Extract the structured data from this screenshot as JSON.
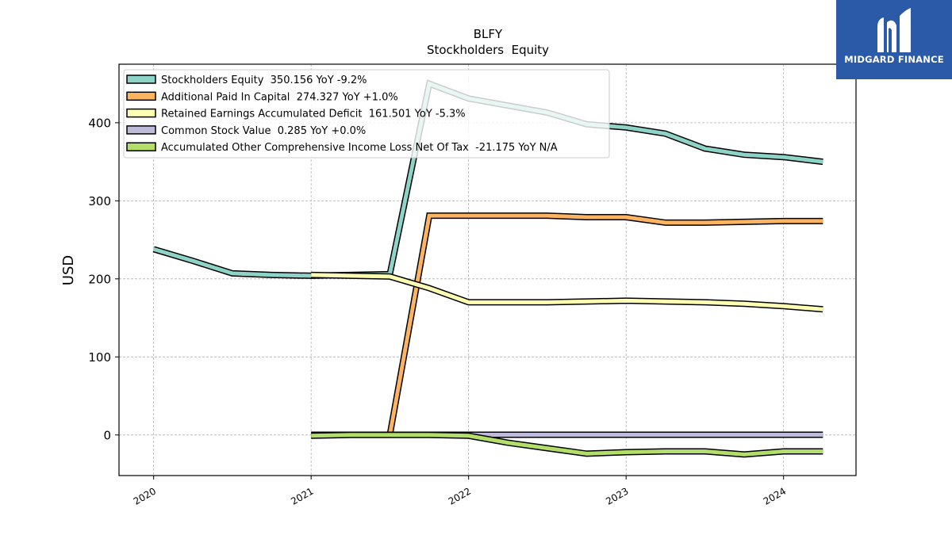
{
  "chart_data": {
    "type": "line",
    "title": "BLFY",
    "subtitle": "Stockholders  Equity",
    "ylabel": "USD",
    "xlabel": "",
    "xlim": [
      2019.78,
      2024.46
    ],
    "ylim": [
      -52,
      475
    ],
    "x_ticks": [
      2020,
      2021,
      2022,
      2023,
      2024
    ],
    "x_tick_labels": [
      "2020",
      "2021",
      "2022",
      "2023",
      "2024"
    ],
    "y_ticks": [
      0,
      100,
      200,
      300,
      400
    ],
    "y_tick_labels": [
      "0",
      "100",
      "200",
      "300",
      "400"
    ],
    "grid": true,
    "legend_position": "top-left",
    "series": [
      {
        "name": "Stockholders Equity",
        "legend": "Stockholders Equity  350.156 YoY -9.2%",
        "color": "#8dd3c7",
        "x": [
          2020.0,
          2020.25,
          2020.5,
          2020.75,
          2021.0,
          2021.25,
          2021.5,
          2021.75,
          2022.0,
          2022.25,
          2022.5,
          2022.75,
          2023.0,
          2023.25,
          2023.5,
          2023.75,
          2024.0,
          2024.25
        ],
        "y": [
          238,
          223,
          207,
          205,
          204,
          205,
          206,
          450,
          431,
          422,
          413,
          398,
          394,
          386,
          367,
          359,
          356,
          350
        ]
      },
      {
        "name": "Additional Paid In Capital",
        "legend": "Additional Paid In Capital  274.327 YoY +1.0%",
        "color": "#fdb462",
        "x": [
          2021.5,
          2021.75,
          2022.0,
          2022.25,
          2022.5,
          2022.75,
          2023.0,
          2023.25,
          2023.5,
          2023.75,
          2024.0,
          2024.25
        ],
        "y": [
          0,
          281,
          281,
          281,
          281,
          279,
          279,
          272,
          272,
          273,
          274,
          274
        ]
      },
      {
        "name": "Retained Earnings Accumulated Deficit",
        "legend": "Retained Earnings Accumulated Deficit  161.501 YoY -5.3%",
        "color": "#ffffb3",
        "x": [
          2021.0,
          2021.25,
          2021.5,
          2021.75,
          2022.0,
          2022.25,
          2022.5,
          2022.75,
          2023.0,
          2023.25,
          2023.5,
          2023.75,
          2024.0,
          2024.25
        ],
        "y": [
          205,
          204,
          203,
          188,
          170,
          170,
          170,
          171,
          172,
          171,
          170,
          168,
          165,
          161
        ]
      },
      {
        "name": "Common Stock Value",
        "legend": "Common Stock Value  0.285 YoY +0.0%",
        "color": "#bebada",
        "x": [
          2021.0,
          2021.25,
          2021.5,
          2021.75,
          2022.0,
          2022.25,
          2022.5,
          2022.75,
          2023.0,
          2023.25,
          2023.5,
          2023.75,
          2024.0,
          2024.25
        ],
        "y": [
          0.285,
          0.285,
          0.285,
          0.285,
          0.285,
          0.285,
          0.285,
          0.285,
          0.285,
          0.285,
          0.285,
          0.285,
          0.285,
          0.285
        ]
      },
      {
        "name": "Accumulated Other Comprehensive Income Loss Net Of Tax",
        "legend": "Accumulated Other Comprehensive Income Loss Net Of Tax  -21.175 YoY N/A",
        "color": "#b3de69",
        "x": [
          2021.0,
          2021.25,
          2021.5,
          2021.75,
          2022.0,
          2022.25,
          2022.5,
          2022.75,
          2023.0,
          2023.25,
          2023.5,
          2023.75,
          2024.0,
          2024.25
        ],
        "y": [
          -1,
          0,
          0,
          0,
          -1,
          -10,
          -17,
          -24,
          -22,
          -21,
          -21,
          -25,
          -21,
          -21
        ]
      }
    ]
  },
  "logo": {
    "text": "MIDGARD FINANCE",
    "background": "#2a5aa8"
  }
}
